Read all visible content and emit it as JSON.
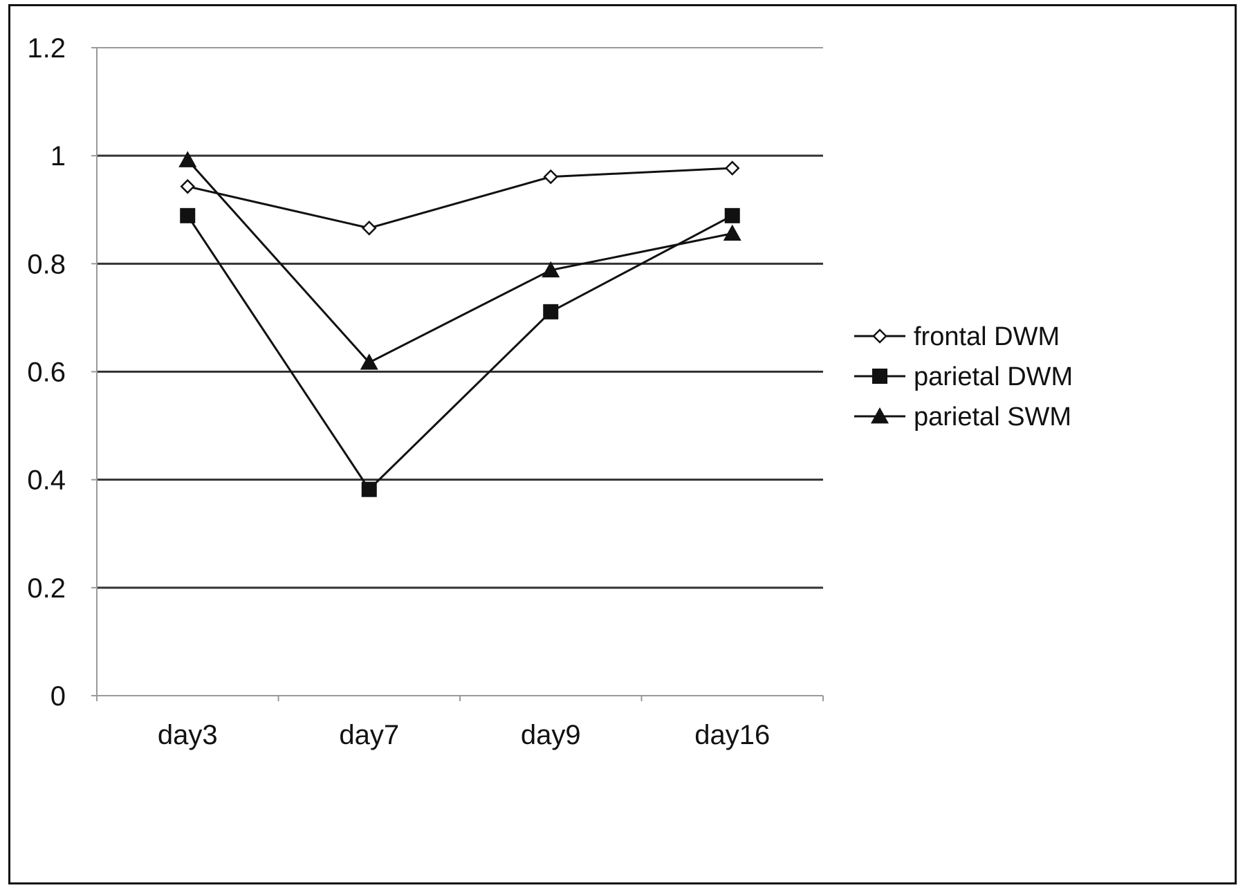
{
  "chart_data": {
    "type": "line",
    "title": "",
    "xlabel": "",
    "ylabel": "",
    "categories": [
      "day3",
      "day7",
      "day9",
      "day16"
    ],
    "ylim": [
      0,
      1.2
    ],
    "yticks": [
      "0",
      "0.2",
      "0.4",
      "0.6",
      "0.8",
      "1",
      "1.2"
    ],
    "grid": true,
    "legend_position": "right",
    "series": [
      {
        "name": "frontal DWM",
        "marker": "open-diamond",
        "values": [
          0.943,
          0.866,
          0.961,
          0.977
        ]
      },
      {
        "name": "parietal DWM",
        "marker": "filled-square",
        "values": [
          0.889,
          0.382,
          0.711,
          0.889
        ]
      },
      {
        "name": "parietal SWM",
        "marker": "filled-triangle",
        "values": [
          0.992,
          0.617,
          0.788,
          0.856
        ]
      }
    ],
    "colors": {
      "line": "#111111",
      "grid": "#333333",
      "axis": "#999999",
      "frame": "#111111"
    }
  }
}
